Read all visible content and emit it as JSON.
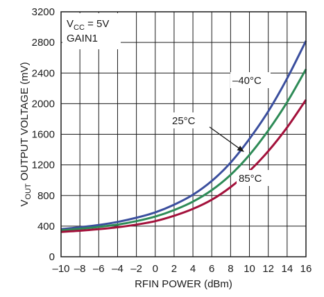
{
  "chart_data": {
    "type": "line",
    "xlabel": "RFIN POWER (dBm)",
    "ylabel": {
      "prefix": "V",
      "sub": "OUT",
      "rest": " OUTPUT VOLTAGE (mV)"
    },
    "xlim": [
      -10,
      16
    ],
    "ylim": [
      0,
      3200
    ],
    "xticks": [
      -10,
      -8,
      -6,
      -4,
      -2,
      0,
      2,
      4,
      6,
      8,
      10,
      12,
      14,
      16
    ],
    "xtick_labels": [
      "–10",
      "–8",
      "–6",
      "–4",
      "–2",
      "0",
      "2",
      "4",
      "6",
      "8",
      "10",
      "12",
      "14",
      "16"
    ],
    "yticks": [
      0,
      400,
      800,
      1200,
      1600,
      2000,
      2400,
      2800,
      3200
    ],
    "ytick_labels": [
      "0",
      "400",
      "800",
      "1200",
      "1600",
      "2000",
      "2400",
      "2800",
      "3200"
    ],
    "grid": true,
    "annotation": {
      "line1_prefix": "V",
      "line1_sub": "CC",
      "line1_rest": " = 5V",
      "line2": "GAIN1"
    },
    "series": [
      {
        "label": "–40°C",
        "color": "#3b4f9e",
        "x": [
          -10,
          -8,
          -6,
          -4,
          -2,
          0,
          2,
          4,
          6,
          8,
          10,
          12,
          14,
          16
        ],
        "y": [
          360,
          385,
          415,
          455,
          510,
          580,
          680,
          810,
          990,
          1230,
          1540,
          1900,
          2330,
          2820
        ]
      },
      {
        "label": "25°C",
        "color": "#2e8b57",
        "x": [
          -10,
          -8,
          -6,
          -4,
          -2,
          0,
          2,
          4,
          6,
          8,
          10,
          12,
          14,
          16
        ],
        "y": [
          345,
          365,
          390,
          420,
          465,
          525,
          610,
          720,
          870,
          1070,
          1330,
          1650,
          2020,
          2450
        ]
      },
      {
        "label": "85°C",
        "color": "#a3113b",
        "x": [
          -10,
          -8,
          -6,
          -4,
          -2,
          0,
          2,
          4,
          6,
          8,
          10,
          12,
          14,
          16
        ],
        "y": [
          325,
          340,
          360,
          385,
          420,
          465,
          535,
          625,
          745,
          910,
          1120,
          1380,
          1690,
          2050
        ]
      }
    ]
  }
}
